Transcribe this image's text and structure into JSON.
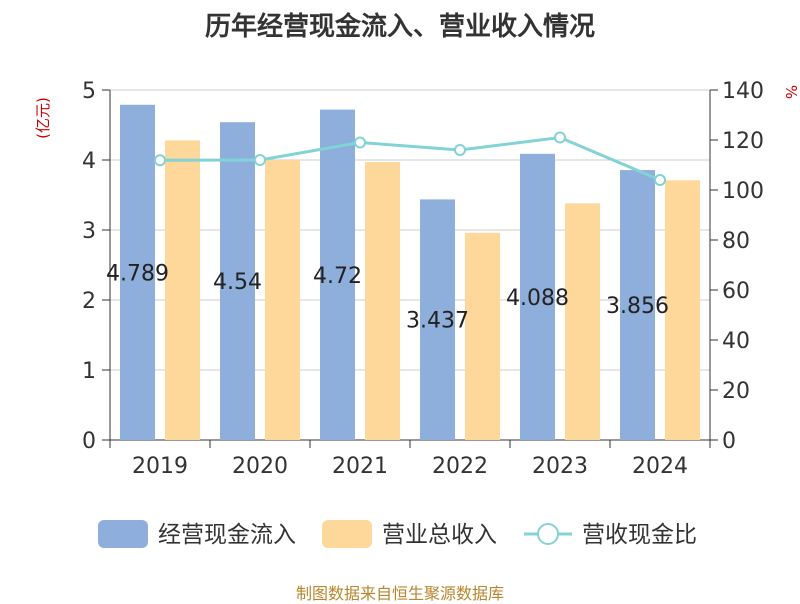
{
  "chart_data": {
    "type": "bar",
    "title": "历年经营现金流入、营业收入情况",
    "categories": [
      "2019",
      "2020",
      "2021",
      "2022",
      "2023",
      "2024"
    ],
    "left_axis": {
      "unit": "(亿元)",
      "ylim": [
        0,
        5
      ],
      "ticks": [
        "0",
        "1",
        "2",
        "3",
        "4",
        "5"
      ]
    },
    "right_axis": {
      "unit": "%",
      "ylim": [
        0,
        140
      ],
      "ticks": [
        "0",
        "20",
        "40",
        "60",
        "80",
        "100",
        "120",
        "140"
      ]
    },
    "series": [
      {
        "name": "经营现金流入",
        "type": "bar",
        "axis": "left",
        "color": "#8eaedb",
        "values": [
          4.789,
          4.54,
          4.72,
          3.437,
          4.088,
          3.856
        ],
        "labels": [
          "4.789",
          "4.54",
          "4.72",
          "3.437",
          "4.088",
          "3.856"
        ]
      },
      {
        "name": "营业总收入",
        "type": "bar",
        "axis": "left",
        "color": "#fdd89a",
        "values": [
          4.28,
          4.0,
          3.97,
          2.96,
          3.38,
          3.71
        ]
      },
      {
        "name": "营收现金比",
        "type": "line",
        "axis": "right",
        "color": "#82d3d6",
        "values": [
          111.9,
          112.0,
          119.0,
          116.0,
          121.0,
          104.0
        ]
      }
    ],
    "grid": true,
    "legend_position": "bottom"
  },
  "footer": {
    "source": "制图数据来自恒生聚源数据库"
  }
}
